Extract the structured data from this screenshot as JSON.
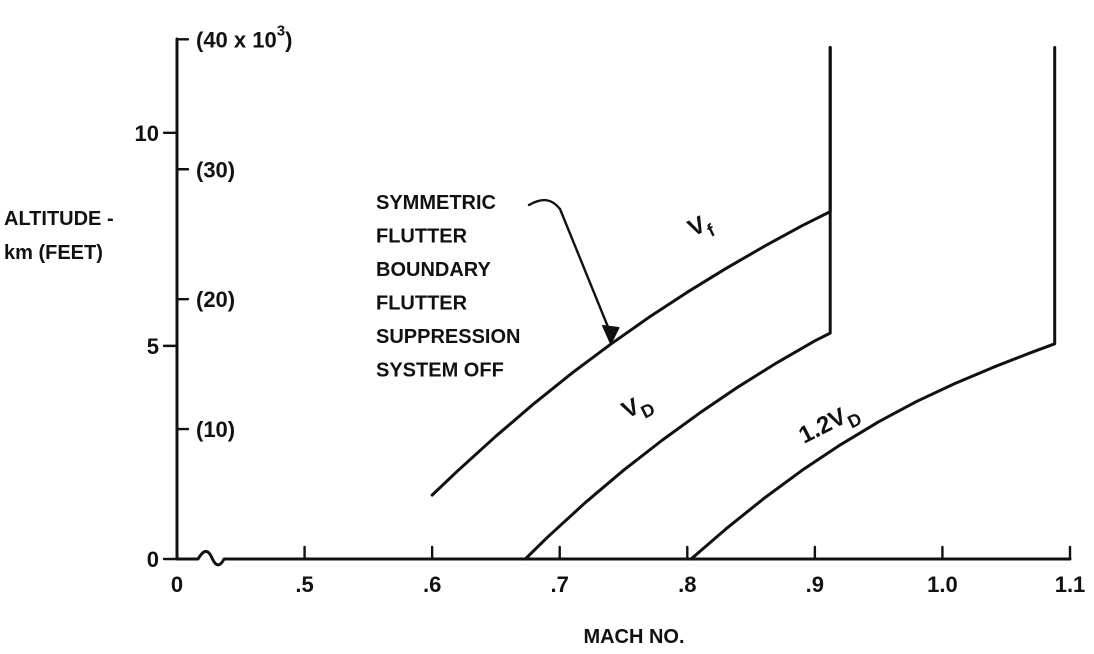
{
  "chart_data": {
    "type": "line",
    "title": "",
    "xlabel": "MACH NO.",
    "ylabel": {
      "line1": "ALTITUDE -",
      "line2": "km (FEET)"
    },
    "xlim": [
      0.4,
      1.1
    ],
    "ylim": [
      0,
      12.2
    ],
    "x_ticks": [
      {
        "value": 0.4,
        "label": "0"
      },
      {
        "value": 0.5,
        "label": ".5"
      },
      {
        "value": 0.6,
        "label": ".6"
      },
      {
        "value": 0.7,
        "label": ".7"
      },
      {
        "value": 0.8,
        "label": ".8"
      },
      {
        "value": 0.9,
        "label": ".9"
      },
      {
        "value": 1.0,
        "label": "1.0"
      },
      {
        "value": 1.1,
        "label": "1.1"
      }
    ],
    "x_axis_break": true,
    "y_ticks_km": [
      {
        "value": 0,
        "label": "0"
      },
      {
        "value": 5,
        "label": "5"
      },
      {
        "value": 10,
        "label": "10"
      }
    ],
    "y_ticks_feet": [
      {
        "value": 3.048,
        "label": "(10)"
      },
      {
        "value": 6.096,
        "label": "(20)"
      },
      {
        "value": 9.144,
        "label": "(30)"
      },
      {
        "value": 12.192,
        "label": "(40 x 10",
        "superscript": "3",
        "suffix": ")"
      }
    ],
    "grid": false,
    "legend": "none",
    "series": [
      {
        "label_main": "V",
        "label_sub": "f",
        "x": [
          0.6,
          0.62,
          0.65,
          0.68,
          0.71,
          0.74,
          0.77,
          0.8,
          0.83,
          0.86,
          0.89,
          0.912,
          0.912
        ],
        "y": [
          1.5,
          2.07,
          2.88,
          3.65,
          4.37,
          5.04,
          5.67,
          6.26,
          6.81,
          7.33,
          7.82,
          8.15,
          12.0
        ]
      },
      {
        "label_main": "V",
        "label_sub": "D",
        "x": [
          0.673,
          0.69,
          0.72,
          0.75,
          0.78,
          0.81,
          0.84,
          0.87,
          0.9,
          0.912,
          0.912
        ],
        "y": [
          0.0,
          0.5,
          1.32,
          2.08,
          2.78,
          3.43,
          4.04,
          4.6,
          5.12,
          5.3,
          12.0
        ]
      },
      {
        "label_main": "1.2V",
        "label_sub": "D",
        "x": [
          0.803,
          0.83,
          0.86,
          0.89,
          0.92,
          0.95,
          0.98,
          1.01,
          1.04,
          1.07,
          1.088,
          1.088
        ],
        "y": [
          0.0,
          0.7,
          1.42,
          2.08,
          2.68,
          3.22,
          3.7,
          4.12,
          4.5,
          4.85,
          5.05,
          12.0
        ]
      }
    ],
    "annotations": [
      {
        "lines": [
          "SYMMETRIC",
          "FLUTTER",
          "BOUNDARY",
          "FLUTTER",
          "SUPPRESSION",
          "SYSTEM OFF"
        ],
        "arrow_to": {
          "x": 0.74,
          "y": 5.05
        }
      }
    ]
  }
}
